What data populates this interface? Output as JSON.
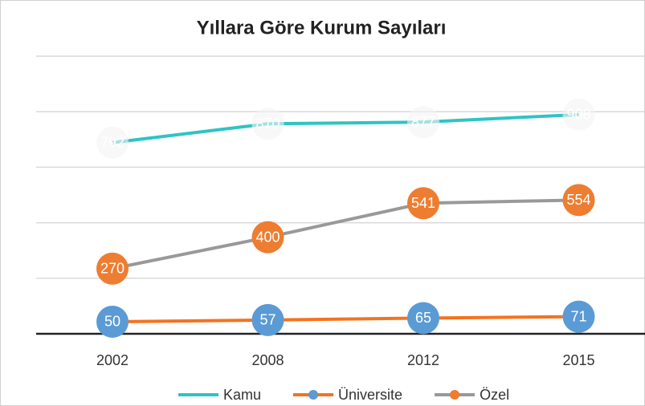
{
  "chart_data": {
    "type": "line",
    "title": "Yıllara Göre Kurum Sayıları",
    "categories": [
      "2002",
      "2008",
      "2012",
      "2015"
    ],
    "ylim": [
      0,
      1150
    ],
    "series": [
      {
        "name": "Kamu",
        "color": "#2ec4c4",
        "marker_color": "#f4f4f4",
        "values": [
          792,
          870,
          877,
          908
        ]
      },
      {
        "name": "Üniversite",
        "color": "#f4731f",
        "marker_color": "#5b9bd5",
        "values": [
          50,
          57,
          65,
          71
        ]
      },
      {
        "name": "Özel",
        "color": "#999999",
        "marker_color": "#ed7d31",
        "values": [
          270,
          400,
          541,
          554
        ]
      }
    ]
  }
}
